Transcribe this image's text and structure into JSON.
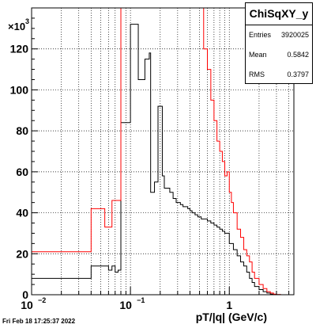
{
  "chart_data": {
    "type": "histogram",
    "title": "",
    "xlabel": "pT/|q| (GeV/c)",
    "ylabel": "",
    "y_multiplier": "×10^3",
    "x_log": true,
    "xlim": [
      0.01,
      4.5
    ],
    "ylim": [
      0,
      140
    ],
    "y_ticks": [
      0,
      20,
      40,
      60,
      80,
      100,
      120
    ],
    "x_ticks": [
      0.01,
      0.1,
      1
    ],
    "x_tick_labels": [
      "10^{-2}",
      "10^{-1}",
      "1"
    ],
    "grid": true,
    "series": [
      {
        "color": "#000000",
        "bin_edges": [
          0.01,
          0.04,
          0.06,
          0.065,
          0.07,
          0.075,
          0.08,
          0.1,
          0.12,
          0.14,
          0.155,
          0.16,
          0.175,
          0.19,
          0.21,
          0.22,
          0.25,
          0.27,
          0.29,
          0.32,
          0.34,
          0.36,
          0.38,
          0.4,
          0.42,
          0.45,
          0.48,
          0.52,
          0.56,
          0.6,
          0.65,
          0.7,
          0.75,
          0.8,
          0.85,
          0.9,
          0.95,
          1.0,
          1.1,
          1.2,
          1.3,
          1.4,
          1.5,
          1.6,
          1.7,
          1.8,
          2.0,
          2.2,
          2.4,
          2.6,
          2.8,
          3.0,
          3.3,
          4.5
        ],
        "values": [
          8,
          14,
          12,
          14,
          11,
          12,
          84,
          132,
          105,
          115,
          118,
          50,
          55,
          92,
          58,
          52,
          50,
          47,
          45,
          44,
          43,
          43,
          42,
          41,
          40,
          39,
          38,
          37,
          37,
          36,
          35,
          34,
          33,
          32,
          31,
          30,
          30,
          25,
          22,
          19,
          16,
          14,
          11,
          8,
          6,
          4,
          2.5,
          1.5,
          0.8,
          0.3,
          0.1,
          0.05,
          0
        ]
      },
      {
        "color": "#ff0000",
        "bin_edges": [
          0.01,
          0.04,
          0.05,
          0.055,
          0.06,
          0.065,
          0.08,
          0.085,
          0.5,
          0.55,
          0.6,
          0.65,
          0.7,
          0.75,
          0.8,
          0.85,
          0.9,
          0.95,
          1.0,
          1.05,
          1.1,
          1.2,
          1.3,
          1.4,
          1.5,
          1.6,
          1.7,
          1.8,
          2.0,
          2.2,
          2.4,
          2.6,
          2.8,
          3.0,
          3.3,
          4.5
        ],
        "values": [
          21,
          42,
          42,
          33,
          33,
          46,
          140,
          140,
          140,
          120,
          110,
          95,
          85,
          75,
          70,
          65,
          58,
          60,
          50,
          45,
          40,
          32,
          28,
          22,
          19,
          16,
          11,
          8,
          5,
          3,
          1.5,
          0.8,
          0.3,
          0.1,
          0
        ]
      }
    ]
  },
  "stats": {
    "title": "ChiSqXY_y",
    "entries_label": "Entries",
    "entries_value": "3920025",
    "mean_label": "Mean",
    "mean_value": "0.5842",
    "rms_label": "RMS",
    "rms_value": "0.3797"
  },
  "footer": "Fri Feb 18 17:25:37 2022"
}
